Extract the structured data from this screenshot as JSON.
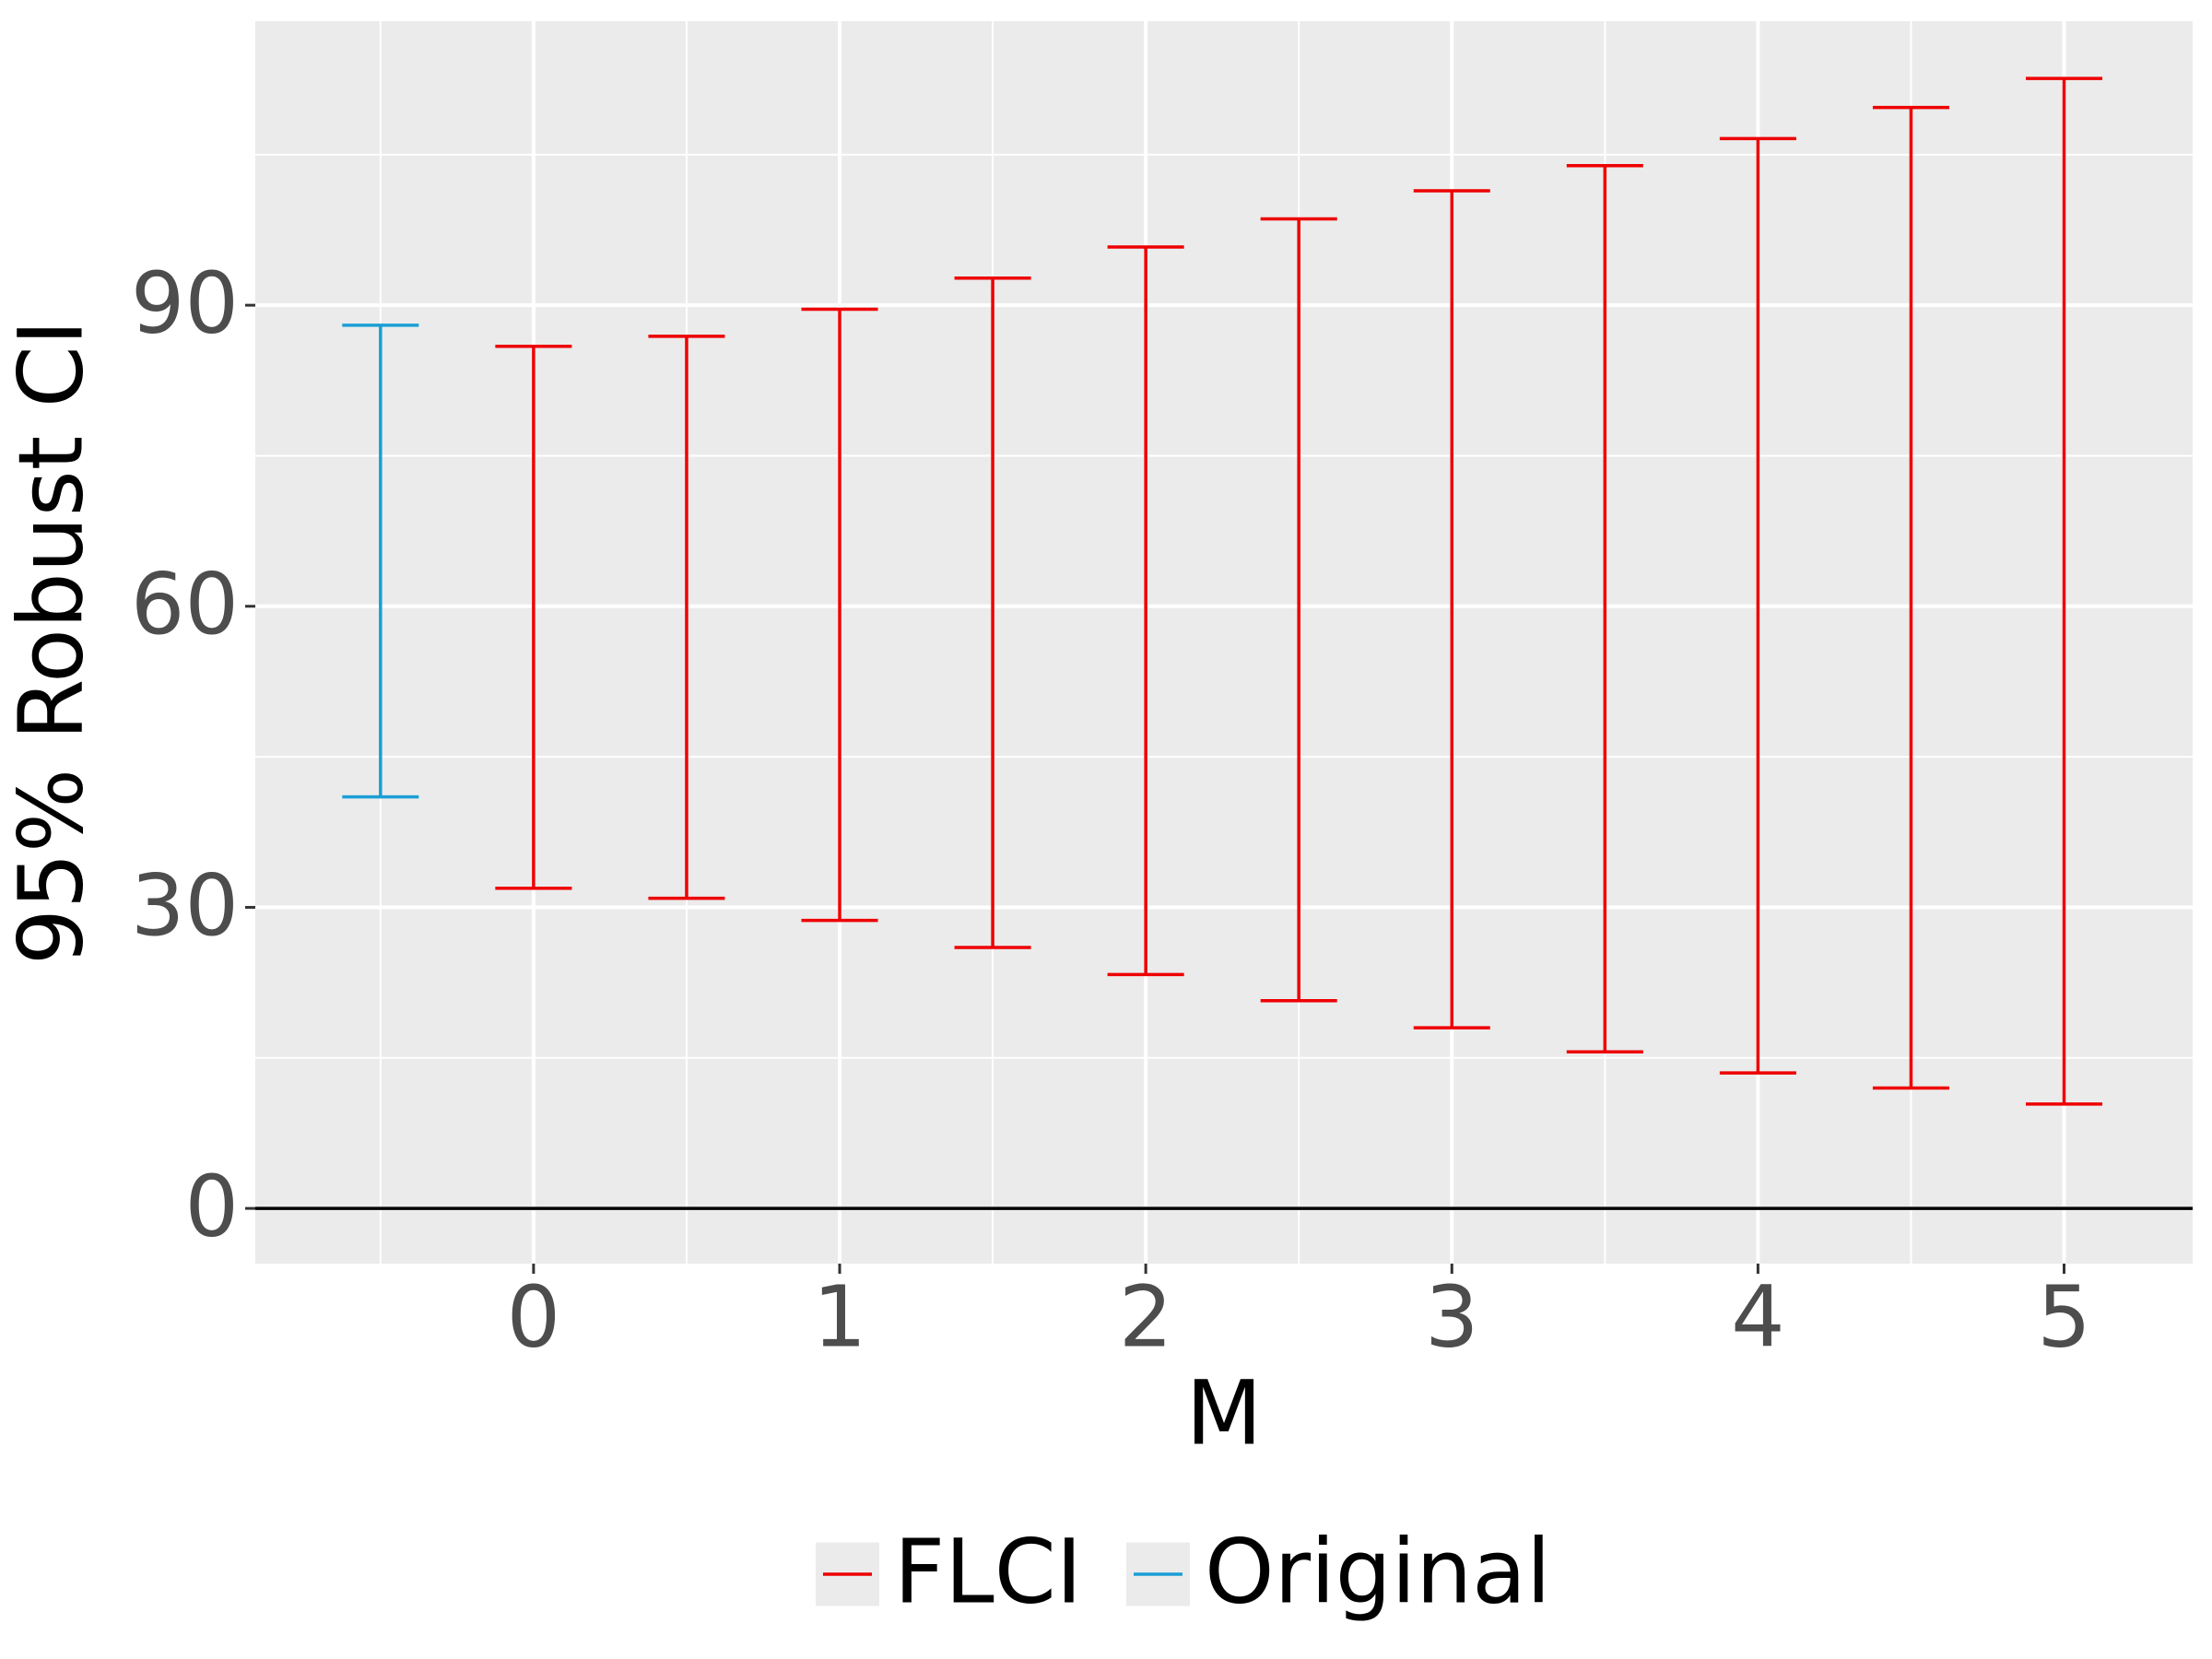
{
  "chart_data": {
    "type": "errorbar",
    "x_label": "M",
    "y_label": "95% Robust CI",
    "xlim": [
      -0.909,
      5.42
    ],
    "xticks": [
      0,
      1,
      2,
      3,
      4,
      5
    ],
    "ylim": [
      -5.5,
      118.3
    ],
    "yticks": [
      0,
      30,
      60,
      90
    ],
    "grid": true,
    "hline": 0,
    "legend": "bottom",
    "series": [
      {
        "name": "FLCI",
        "color": "#ee0000",
        "x": [
          0,
          0.5,
          1,
          1.5,
          2,
          2.5,
          3,
          3.5,
          4,
          4.5,
          5
        ],
        "lower": [
          31.9,
          30.9,
          28.7,
          26.0,
          23.3,
          20.7,
          18.0,
          15.6,
          13.5,
          12.0,
          10.4
        ],
        "upper": [
          85.9,
          86.9,
          89.6,
          92.7,
          95.8,
          98.6,
          101.4,
          103.9,
          106.6,
          109.7,
          112.6
        ]
      },
      {
        "name": "Original",
        "color": "#1b9ed6",
        "x": [
          -0.5
        ],
        "lower": [
          41.0
        ],
        "upper": [
          88.0
        ]
      }
    ]
  }
}
